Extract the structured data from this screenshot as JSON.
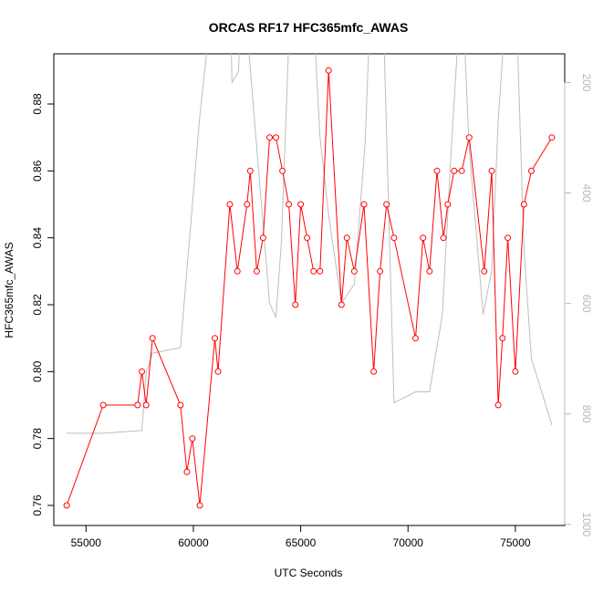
{
  "chart_data": {
    "type": "line",
    "title": "ORCAS RF17 HFC365mfc_AWAS",
    "xlabel": "UTC Seconds",
    "ylabel": "HFC365mfc_AWAS",
    "xlim": [
      53500,
      77300
    ],
    "ylim": [
      0.754,
      0.895
    ],
    "x_ticks": [
      55000,
      60000,
      65000,
      70000,
      75000
    ],
    "x_tick_labels": [
      "55000",
      "60000",
      "65000",
      "70000",
      "75000"
    ],
    "y_ticks": [
      0.76,
      0.78,
      0.8,
      0.82,
      0.84,
      0.86,
      0.88
    ],
    "y_tick_labels": [
      "0.76",
      "0.78",
      "0.80",
      "0.82",
      "0.84",
      "0.86",
      "0.88"
    ],
    "y2_ticks": [
      200,
      400,
      600,
      800,
      1000
    ],
    "y2_tick_labels": [
      "200",
      "400",
      "600",
      "800",
      "1000"
    ],
    "y2lim": [
      1002,
      148
    ],
    "grid": false,
    "series": [
      {
        "color": "#ff0000",
        "marker": "open-circle",
        "x": [
          54100,
          55800,
          57400,
          57600,
          57800,
          58100,
          59400,
          59700,
          59950,
          60300,
          61000,
          61150,
          61700,
          62050,
          62500,
          62650,
          62950,
          63250,
          63550,
          63850,
          64150,
          64450,
          64750,
          65000,
          65300,
          65600,
          65900,
          66300,
          66900,
          67150,
          67500,
          67950,
          68400,
          68700,
          69000,
          69350,
          70350,
          70700,
          71000,
          71350,
          71650,
          71850,
          72150,
          72500,
          72850,
          73550,
          73900,
          74200,
          74400,
          74650,
          75000,
          75400,
          75750,
          76700
        ],
        "y": [
          0.76,
          0.79,
          0.79,
          0.8,
          0.79,
          0.81,
          0.79,
          0.77,
          0.78,
          0.76,
          0.81,
          0.8,
          0.85,
          0.83,
          0.85,
          0.86,
          0.83,
          0.84,
          0.87,
          0.87,
          0.86,
          0.85,
          0.82,
          0.85,
          0.84,
          0.83,
          0.83,
          0.89,
          0.82,
          0.84,
          0.83,
          0.85,
          0.8,
          0.83,
          0.85,
          0.84,
          0.81,
          0.84,
          0.83,
          0.86,
          0.84,
          0.85,
          0.86,
          0.86,
          0.87,
          0.83,
          0.86,
          0.79,
          0.81,
          0.84,
          0.8,
          0.85,
          0.86,
          0.87
        ]
      },
      {
        "color": "#bebebe",
        "axis": "right",
        "x": [
          54100,
          55800,
          57600,
          57800,
          58100,
          59400,
          60300,
          61000,
          61700,
          61800,
          62100,
          62300,
          63550,
          63850,
          64100,
          64500,
          65000,
          65500,
          65900,
          66300,
          66900,
          67500,
          68000,
          68300,
          68800,
          69350,
          70350,
          70600,
          71000,
          71600,
          72000,
          72500,
          72850,
          73500,
          73900,
          74200,
          74650,
          75000,
          75400,
          75750,
          76700
        ],
        "y": [
          835,
          835,
          830,
          725,
          690,
          680,
          260,
          10,
          10,
          200,
          180,
          10,
          600,
          625,
          490,
          70,
          10,
          10,
          300,
          440,
          600,
          565,
          310,
          10,
          10,
          780,
          760,
          760,
          760,
          620,
          330,
          10,
          320,
          620,
          540,
          270,
          10,
          10,
          500,
          700,
          820
        ]
      }
    ]
  }
}
